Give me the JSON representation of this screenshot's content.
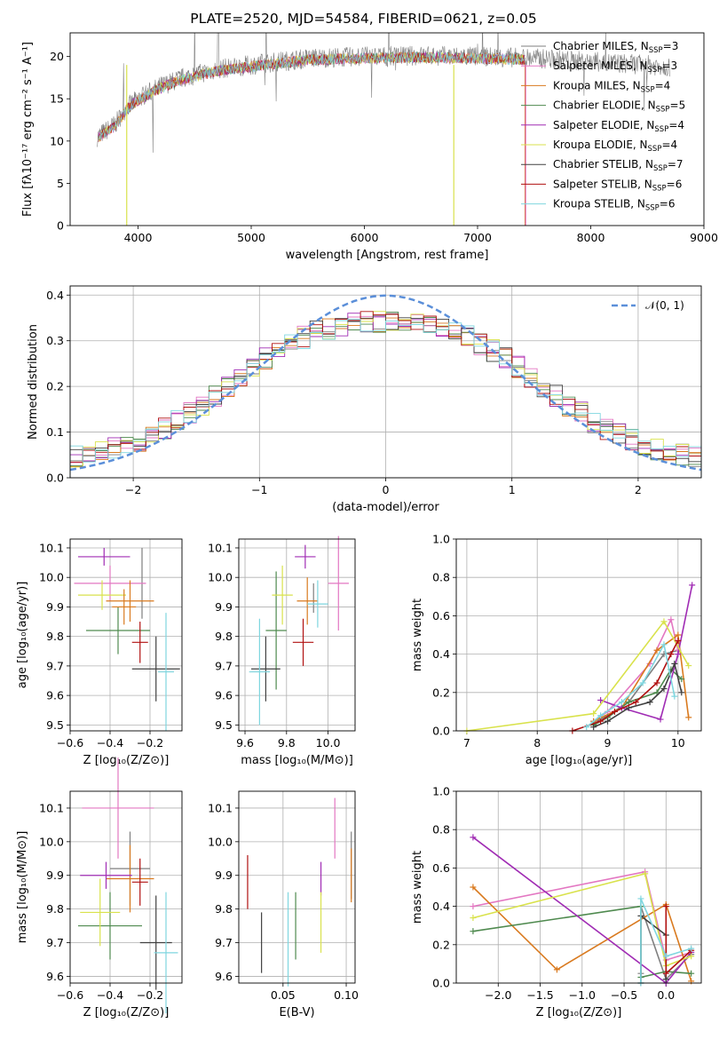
{
  "title": "PLATE=2520, MJD=54584, FIBERID=0621, z=0.05",
  "colors": [
    "#7f7f7f",
    "#e377c2",
    "#d97a1f",
    "#4f8a4f",
    "#a02cb4",
    "#d9e24c",
    "#404040",
    "#b01010",
    "#7fd6df"
  ],
  "legend_ssp": [
    {
      "label": "Chabrier MILES, N",
      "nssp": "3"
    },
    {
      "label": "Salpeter MILES, N",
      "nssp": "3"
    },
    {
      "label": "Kroupa MILES, N",
      "nssp": "4"
    },
    {
      "label": "Chabrier ELODIE, N",
      "nssp": "5"
    },
    {
      "label": "Salpeter ELODIE, N",
      "nssp": "4"
    },
    {
      "label": "Kroupa ELODIE, N",
      "nssp": "4"
    },
    {
      "label": "Chabrier STELIB, N",
      "nssp": "7"
    },
    {
      "label": "Salpeter STELIB, N",
      "nssp": "6"
    },
    {
      "label": "Kroupa STELIB, N",
      "nssp": "6"
    }
  ],
  "legend_sub": "SSP",
  "normal_label": "𝒩(0, 1)",
  "chart_data": [
    {
      "id": "spectrum",
      "type": "line",
      "xlabel": "wavelength [Angstrom, rest frame]",
      "ylabel": "Flux [fλ10⁻¹⁷ erg cm⁻² s⁻¹ A⁻¹]",
      "xlim": [
        3400,
        9000
      ],
      "ylim": [
        0,
        22.8
      ],
      "xticks": [
        4000,
        5000,
        6000,
        7000,
        8000,
        9000
      ],
      "yticks": [
        0,
        5,
        10,
        15,
        20
      ],
      "continuum_x": [
        3640,
        3800,
        3900,
        4000,
        4200,
        4400,
        4700,
        5000,
        5500,
        6000,
        6500,
        7000,
        7500,
        8000,
        8500,
        8700
      ],
      "continuum_y": [
        10.5,
        12.0,
        14.0,
        15.0,
        16.5,
        17.5,
        18.5,
        19.0,
        19.8,
        20.0,
        20.1,
        20.0,
        19.8,
        19.4,
        19.0,
        18.8
      ],
      "model_x_range": [
        3650,
        7420
      ]
    },
    {
      "id": "residuals",
      "type": "histogram",
      "xlabel": "(data-model)/error",
      "ylabel": "Normed distribution",
      "xlim": [
        -2.5,
        2.5
      ],
      "ylim": [
        0,
        0.42
      ],
      "xticks": [
        -2,
        -1,
        0,
        1,
        2
      ],
      "yticks": [
        0.0,
        0.1,
        0.2,
        0.3,
        0.4
      ],
      "normal_curve": {
        "mean": 0,
        "sigma": 1
      }
    },
    {
      "id": "z_age",
      "type": "scatter",
      "xlabel": "Z [log₁₀(Z/Z⊙)]",
      "ylabel": "age  [log₁₀(age/yr)]",
      "xlim": [
        -0.6,
        -0.04
      ],
      "ylim": [
        9.48,
        10.13
      ],
      "xticks": [
        -0.6,
        -0.4,
        -0.2
      ],
      "yticks": [
        9.5,
        9.6,
        9.7,
        9.8,
        9.9,
        10.0,
        10.1
      ],
      "points": [
        {
          "x": -0.24,
          "y": 9.98,
          "xe": 0.0,
          "ye": 0.12,
          "c": 0
        },
        {
          "x": -0.4,
          "y": 9.98,
          "xe": 0.18,
          "ye": 0.06,
          "c": 1
        },
        {
          "x": -0.3,
          "y": 9.92,
          "xe": 0.12,
          "ye": 0.07,
          "c": 2
        },
        {
          "x": -0.36,
          "y": 9.82,
          "xe": 0.16,
          "ye": 0.08,
          "c": 3
        },
        {
          "x": -0.43,
          "y": 10.07,
          "xe": 0.13,
          "ye": 0.03,
          "c": 4
        },
        {
          "x": -0.44,
          "y": 9.94,
          "xe": 0.12,
          "ye": 0.05,
          "c": 5
        },
        {
          "x": -0.17,
          "y": 9.69,
          "xe": 0.12,
          "ye": 0.11,
          "c": 6
        },
        {
          "x": -0.25,
          "y": 9.78,
          "xe": 0.04,
          "ye": 0.07,
          "c": 7
        },
        {
          "x": -0.12,
          "y": 9.68,
          "xe": 0.04,
          "ye": 0.2,
          "c": 8
        },
        {
          "x": -0.33,
          "y": 9.9,
          "xe": 0.06,
          "ye": 0.06,
          "c": 2
        }
      ]
    },
    {
      "id": "mass_age",
      "type": "scatter",
      "xlabel": "mass [log₁₀(M/M⊙)]",
      "ylabel": "",
      "xlim": [
        9.57,
        10.13
      ],
      "ylim": [
        9.48,
        10.13
      ],
      "xticks": [
        9.6,
        9.8,
        10.0
      ],
      "yticks": [
        9.5,
        9.6,
        9.7,
        9.8,
        9.9,
        10.0,
        10.1
      ],
      "points": [
        {
          "x": 9.93,
          "y": 9.93,
          "xe": 0.0,
          "ye": 0.05,
          "c": 0
        },
        {
          "x": 10.05,
          "y": 9.98,
          "xe": 0.05,
          "ye": 0.16,
          "c": 1
        },
        {
          "x": 9.9,
          "y": 9.92,
          "xe": 0.05,
          "ye": 0.08,
          "c": 2
        },
        {
          "x": 9.75,
          "y": 9.82,
          "xe": 0.05,
          "ye": 0.2,
          "c": 3
        },
        {
          "x": 9.89,
          "y": 10.07,
          "xe": 0.05,
          "ye": 0.04,
          "c": 4
        },
        {
          "x": 9.78,
          "y": 9.94,
          "xe": 0.05,
          "ye": 0.1,
          "c": 5
        },
        {
          "x": 9.7,
          "y": 9.69,
          "xe": 0.07,
          "ye": 0.11,
          "c": 6
        },
        {
          "x": 9.88,
          "y": 9.78,
          "xe": 0.05,
          "ye": 0.08,
          "c": 7
        },
        {
          "x": 9.67,
          "y": 9.68,
          "xe": 0.05,
          "ye": 0.18,
          "c": 8
        },
        {
          "x": 9.95,
          "y": 9.91,
          "xe": 0.05,
          "ye": 0.08,
          "c": 8
        }
      ]
    },
    {
      "id": "age_weight",
      "type": "line",
      "xlabel": "age  [log₁₀(age/yr)]",
      "ylabel": "mass weight",
      "xlim": [
        6.85,
        10.33
      ],
      "ylim": [
        0,
        1.0
      ],
      "xticks": [
        7,
        8,
        9,
        10
      ],
      "yticks": [
        0.0,
        0.2,
        0.4,
        0.6,
        0.8,
        1.0
      ],
      "series": [
        {
          "c": 0,
          "x": [
            8.8,
            9.0,
            9.3,
            9.8,
            10.0
          ],
          "y": [
            0.04,
            0.08,
            0.15,
            0.4,
            0.42
          ]
        },
        {
          "c": 1,
          "x": [
            8.8,
            9.0,
            9.6,
            9.9,
            10.0
          ],
          "y": [
            0.05,
            0.1,
            0.35,
            0.58,
            0.42
          ]
        },
        {
          "c": 2,
          "x": [
            8.8,
            9.2,
            9.7,
            10.0,
            10.15
          ],
          "y": [
            0.05,
            0.12,
            0.42,
            0.5,
            0.07
          ]
        },
        {
          "c": 3,
          "x": [
            8.8,
            9.0,
            9.3,
            9.7,
            9.9,
            10.05
          ],
          "y": [
            0.03,
            0.07,
            0.15,
            0.2,
            0.32,
            0.27
          ]
        },
        {
          "c": 4,
          "x": [
            8.9,
            9.2,
            9.75,
            10.0,
            10.2
          ],
          "y": [
            0.16,
            0.12,
            0.06,
            0.4,
            0.76
          ]
        },
        {
          "c": 5,
          "x": [
            7.0,
            8.8,
            9.8,
            10.15
          ],
          "y": [
            0.0,
            0.09,
            0.57,
            0.34
          ]
        },
        {
          "c": 6,
          "x": [
            8.8,
            9.0,
            9.3,
            9.6,
            9.8,
            9.95,
            10.05
          ],
          "y": [
            0.02,
            0.05,
            0.12,
            0.15,
            0.22,
            0.35,
            0.2
          ]
        },
        {
          "c": 7,
          "x": [
            8.5,
            8.9,
            9.1,
            9.4,
            9.7,
            9.9,
            10.0
          ],
          "y": [
            0.0,
            0.05,
            0.1,
            0.15,
            0.25,
            0.4,
            0.47
          ]
        },
        {
          "c": 8,
          "x": [
            8.7,
            8.9,
            9.2,
            9.5,
            9.8,
            9.95
          ],
          "y": [
            0.02,
            0.08,
            0.15,
            0.25,
            0.45,
            0.18
          ]
        }
      ]
    },
    {
      "id": "z_mass",
      "type": "scatter",
      "xlabel": "Z [log₁₀(Z/Z⊙)]",
      "ylabel": "mass [log₁₀(M/M⊙)]",
      "xlim": [
        -0.6,
        -0.04
      ],
      "ylim": [
        9.58,
        10.15
      ],
      "xticks": [
        -0.6,
        -0.4,
        -0.2
      ],
      "yticks": [
        9.6,
        9.7,
        9.8,
        9.9,
        10.0,
        10.1
      ],
      "points": [
        {
          "x": -0.3,
          "y": 9.92,
          "xe": 0.1,
          "ye": 0.11,
          "c": 0
        },
        {
          "x": -0.36,
          "y": 10.1,
          "xe": 0.18,
          "ye": 0.15,
          "c": 1
        },
        {
          "x": -0.3,
          "y": 9.89,
          "xe": 0.12,
          "ye": 0.1,
          "c": 2
        },
        {
          "x": -0.4,
          "y": 9.75,
          "xe": 0.16,
          "ye": 0.1,
          "c": 3
        },
        {
          "x": -0.42,
          "y": 9.9,
          "xe": 0.13,
          "ye": 0.04,
          "c": 4
        },
        {
          "x": -0.45,
          "y": 9.79,
          "xe": 0.1,
          "ye": 0.1,
          "c": 5
        },
        {
          "x": -0.17,
          "y": 9.7,
          "xe": 0.08,
          "ye": 0.14,
          "c": 6
        },
        {
          "x": -0.25,
          "y": 9.88,
          "xe": 0.04,
          "ye": 0.07,
          "c": 7
        },
        {
          "x": -0.12,
          "y": 9.67,
          "xe": 0.06,
          "ye": 0.18,
          "c": 8
        }
      ]
    },
    {
      "id": "ebv_mass",
      "type": "scatter",
      "xlabel": "E(B-V)",
      "ylabel": "",
      "xlim": [
        0.015,
        0.107
      ],
      "ylim": [
        9.58,
        10.15
      ],
      "xticks": [
        0.05,
        0.1
      ],
      "yticks": [
        9.6,
        9.7,
        9.8,
        9.9,
        10.0,
        10.1
      ],
      "points": [
        {
          "x": 0.104,
          "y": 9.93,
          "xe": 0.0,
          "ye": 0.1,
          "c": 0
        },
        {
          "x": 0.091,
          "y": 10.04,
          "xe": 0.0,
          "ye": 0.09,
          "c": 1
        },
        {
          "x": 0.104,
          "y": 9.9,
          "xe": 0.0,
          "ye": 0.08,
          "c": 2
        },
        {
          "x": 0.06,
          "y": 9.75,
          "xe": 0.0,
          "ye": 0.1,
          "c": 3
        },
        {
          "x": 0.08,
          "y": 9.89,
          "xe": 0.0,
          "ye": 0.05,
          "c": 4
        },
        {
          "x": 0.08,
          "y": 9.76,
          "xe": 0.0,
          "ye": 0.09,
          "c": 5
        },
        {
          "x": 0.033,
          "y": 9.7,
          "xe": 0.0,
          "ye": 0.09,
          "c": 6
        },
        {
          "x": 0.022,
          "y": 9.88,
          "xe": 0.0,
          "ye": 0.08,
          "c": 7
        },
        {
          "x": 0.054,
          "y": 9.71,
          "xe": 0.0,
          "ye": 0.14,
          "c": 8
        }
      ]
    },
    {
      "id": "z_weight",
      "type": "line",
      "xlabel": "Z [log₁₀(Z/Z⊙)]",
      "ylabel": "mass weight",
      "xlim": [
        -2.5,
        0.42
      ],
      "ylim": [
        0,
        1.0
      ],
      "xticks": [
        -2.0,
        -1.5,
        -1.0,
        -0.5,
        0.0
      ],
      "yticks": [
        0.0,
        0.2,
        0.4,
        0.6,
        0.8,
        1.0
      ],
      "series": [
        {
          "c": 0,
          "x": [
            -0.3,
            -0.3,
            0.0,
            0.3
          ],
          "y": [
            0.05,
            0.4,
            0.02,
            0.15
          ]
        },
        {
          "c": 1,
          "x": [
            -2.3,
            -0.25,
            0.0,
            0.3
          ],
          "y": [
            0.4,
            0.58,
            0.12,
            0.16
          ]
        },
        {
          "c": 2,
          "x": [
            -2.3,
            -1.3,
            0.0,
            0.3
          ],
          "y": [
            0.5,
            0.07,
            0.41,
            0.01
          ]
        },
        {
          "c": 3,
          "x": [
            -2.3,
            -0.3,
            -0.3,
            0.0,
            0.3
          ],
          "y": [
            0.27,
            0.4,
            0.03,
            0.06,
            0.05
          ]
        },
        {
          "c": 4,
          "x": [
            -2.3,
            0.0,
            0.3
          ],
          "y": [
            0.76,
            0.0,
            0.16
          ]
        },
        {
          "c": 5,
          "x": [
            -2.3,
            -0.25,
            0.0,
            0.3
          ],
          "y": [
            0.34,
            0.57,
            0.09,
            0.14
          ]
        },
        {
          "c": 6,
          "x": [
            -0.3,
            -0.3,
            0.0,
            0.0
          ],
          "y": [
            0.0,
            0.35,
            0.25,
            0.02
          ]
        },
        {
          "c": 7,
          "x": [
            0.0,
            0.0,
            0.3
          ],
          "y": [
            0.4,
            0.05,
            0.17
          ]
        },
        {
          "c": 8,
          "x": [
            -0.3,
            -0.3,
            0.0,
            0.3
          ],
          "y": [
            0.0,
            0.44,
            0.14,
            0.18
          ]
        }
      ]
    }
  ]
}
